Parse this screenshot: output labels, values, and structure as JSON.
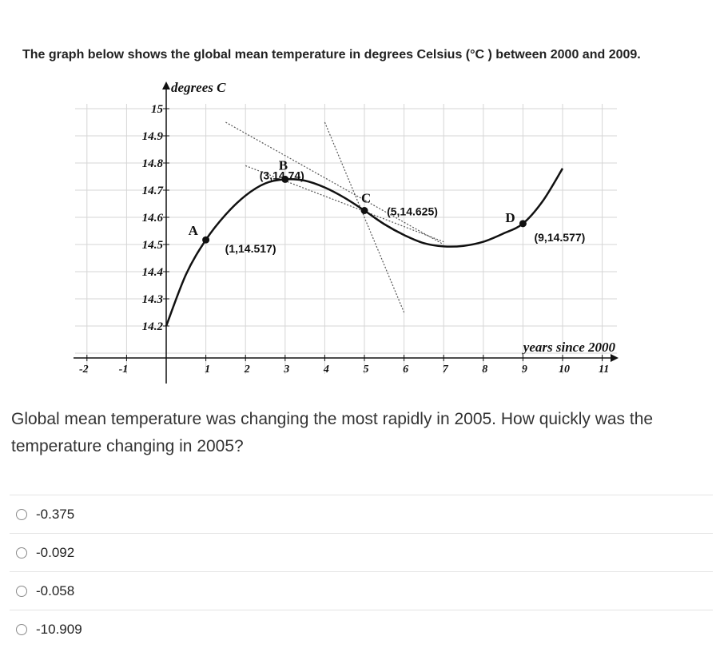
{
  "question": {
    "intro_text": "The graph below shows the global mean temperature in degrees Celsius (°C ) between 2000 and 2009.",
    "prompt": "Global mean temperature was changing the most rapidly in 2005. How quickly was the temperature changing in 2005?",
    "options": [
      {
        "label": "-0.375"
      },
      {
        "label": "-0.092"
      },
      {
        "label": "-0.058"
      },
      {
        "label": "-10.909"
      }
    ]
  },
  "chart_data": {
    "type": "line",
    "ylabel": "degrees C",
    "xlabel": "years since 2000",
    "xlim": [
      -2,
      11
    ],
    "ylim": [
      14.1,
      15
    ],
    "x_ticks": [
      -2,
      -1,
      1,
      2,
      3,
      4,
      5,
      6,
      7,
      8,
      9,
      10,
      11
    ],
    "x_tick_labels": [
      "-2",
      "-1",
      "1",
      "2",
      "3",
      "4",
      "5",
      "6",
      "7",
      "8",
      "9",
      "10",
      "11"
    ],
    "y_ticks": [
      14.2,
      14.3,
      14.4,
      14.5,
      14.6,
      14.7,
      14.8,
      14.9,
      15
    ],
    "y_tick_labels": [
      "14.2",
      "14.3",
      "14.4",
      "14.5",
      "14.6",
      "14.7",
      "14.8",
      "14.9",
      "15"
    ],
    "series": [
      {
        "x": [
          0,
          0.5,
          1,
          1.5,
          2,
          2.5,
          3,
          3.5,
          4,
          4.5,
          5,
          5.5,
          6,
          6.5,
          7,
          7.5,
          8,
          8.5,
          9,
          9.5,
          10
        ],
        "y": [
          14.2,
          14.39,
          14.517,
          14.61,
          14.68,
          14.725,
          14.74,
          14.735,
          14.71,
          14.672,
          14.625,
          14.575,
          14.535,
          14.505,
          14.493,
          14.495,
          14.51,
          14.54,
          14.577,
          14.66,
          14.78
        ]
      }
    ],
    "points": [
      {
        "name": "A",
        "x": 1,
        "y": 14.517,
        "label": "(1,14.517)"
      },
      {
        "name": "B",
        "x": 3,
        "y": 14.74,
        "label": "(3,14.74)"
      },
      {
        "name": "C",
        "x": 5,
        "y": 14.625,
        "label": "(5,14.625)"
      },
      {
        "name": "D",
        "x": 9,
        "y": 14.577,
        "label": "(9,14.577)"
      }
    ],
    "tangent_lines": [
      {
        "x": [
          1.5,
          7
        ],
        "y": [
          14.95,
          14.5
        ]
      },
      {
        "x": [
          2,
          7
        ],
        "y": [
          14.79,
          14.51
        ]
      },
      {
        "x": [
          4,
          6
        ],
        "y": [
          14.95,
          14.25
        ]
      }
    ],
    "grid": true
  }
}
